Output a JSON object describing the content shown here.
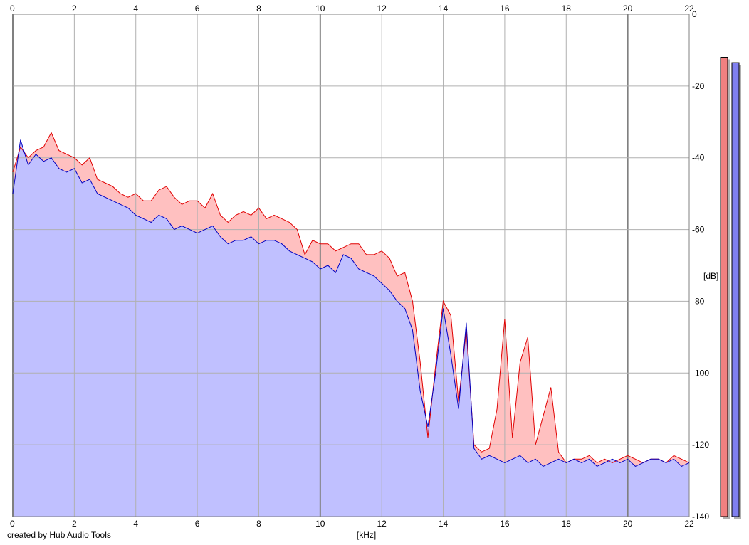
{
  "chart_data": {
    "type": "area",
    "title": "",
    "xlabel": "[kHz]",
    "ylabel": "[dB]",
    "xlim": [
      0,
      22
    ],
    "ylim": [
      -140,
      0
    ],
    "x_ticks": [
      0,
      2,
      4,
      6,
      8,
      10,
      12,
      14,
      16,
      18,
      20,
      22
    ],
    "y_ticks": [
      0,
      -20,
      -40,
      -60,
      -80,
      -100,
      -120,
      -140
    ],
    "grid": true,
    "legend": "none",
    "series": [
      {
        "color": "#e00000",
        "fill": "#ffc0c0",
        "x": [
          0,
          0.25,
          0.5,
          0.75,
          1,
          1.25,
          1.5,
          1.75,
          2,
          2.25,
          2.5,
          2.75,
          3,
          3.25,
          3.5,
          3.75,
          4,
          4.25,
          4.5,
          4.75,
          5,
          5.25,
          5.5,
          5.75,
          6,
          6.25,
          6.5,
          6.75,
          7,
          7.25,
          7.5,
          7.75,
          8,
          8.25,
          8.5,
          8.75,
          9,
          9.25,
          9.5,
          9.75,
          10,
          10.25,
          10.5,
          10.75,
          11,
          11.25,
          11.5,
          11.75,
          12,
          12.25,
          12.5,
          12.75,
          13,
          13.25,
          13.5,
          13.75,
          14,
          14.25,
          14.5,
          14.75,
          15,
          15.25,
          15.5,
          15.75,
          16,
          16.25,
          16.5,
          16.75,
          17,
          17.25,
          17.5,
          17.75,
          18,
          18.25,
          18.5,
          18.75,
          19,
          19.25,
          19.5,
          19.75,
          20,
          20.25,
          20.5,
          20.75,
          21,
          21.25,
          21.5,
          21.75,
          22
        ],
        "values": [
          -44,
          -37,
          -40,
          -38,
          -37,
          -33,
          -38,
          -39,
          -40,
          -42,
          -40,
          -46,
          -47,
          -48,
          -50,
          -51,
          -50,
          -52,
          -52,
          -49,
          -48,
          -51,
          -53,
          -52,
          -52,
          -54,
          -50,
          -56,
          -58,
          -56,
          -55,
          -56,
          -54,
          -57,
          -56,
          -57,
          -58,
          -60,
          -67,
          -63,
          -64,
          -64,
          -66,
          -65,
          -64,
          -64,
          -67,
          -67,
          -66,
          -68,
          -73,
          -72,
          -80,
          -97,
          -118,
          -98,
          -80,
          -84,
          -108,
          -88,
          -120,
          -122,
          -121,
          -110,
          -85,
          -118,
          -97,
          -90,
          -120,
          -112,
          -104,
          -122,
          -125,
          -124,
          -124,
          -123,
          -125,
          -124,
          -125,
          -124,
          -123,
          -124,
          -125,
          -124,
          -124,
          -125,
          -123,
          -124,
          -125
        ]
      },
      {
        "color": "#0000c0",
        "fill": "#c0c0ff",
        "x": [
          0,
          0.25,
          0.5,
          0.75,
          1,
          1.25,
          1.5,
          1.75,
          2,
          2.25,
          2.5,
          2.75,
          3,
          3.25,
          3.5,
          3.75,
          4,
          4.25,
          4.5,
          4.75,
          5,
          5.25,
          5.5,
          5.75,
          6,
          6.25,
          6.5,
          6.75,
          7,
          7.25,
          7.5,
          7.75,
          8,
          8.25,
          8.5,
          8.75,
          9,
          9.25,
          9.5,
          9.75,
          10,
          10.25,
          10.5,
          10.75,
          11,
          11.25,
          11.5,
          11.75,
          12,
          12.25,
          12.5,
          12.75,
          13,
          13.25,
          13.5,
          13.75,
          14,
          14.25,
          14.5,
          14.75,
          15,
          15.25,
          15.5,
          15.75,
          16,
          16.25,
          16.5,
          16.75,
          17,
          17.25,
          17.5,
          17.75,
          18,
          18.25,
          18.5,
          18.75,
          19,
          19.25,
          19.5,
          19.75,
          20,
          20.25,
          20.5,
          20.75,
          21,
          21.25,
          21.5,
          21.75,
          22
        ],
        "values": [
          -50,
          -35,
          -42,
          -39,
          -41,
          -40,
          -43,
          -44,
          -43,
          -47,
          -46,
          -50,
          -51,
          -52,
          -53,
          -54,
          -56,
          -57,
          -58,
          -56,
          -57,
          -60,
          -59,
          -60,
          -61,
          -60,
          -59,
          -62,
          -64,
          -63,
          -63,
          -62,
          -64,
          -63,
          -63,
          -64,
          -66,
          -67,
          -68,
          -69,
          -71,
          -70,
          -72,
          -67,
          -68,
          -71,
          -72,
          -73,
          -75,
          -77,
          -80,
          -82,
          -88,
          -105,
          -115,
          -100,
          -82,
          -95,
          -110,
          -86,
          -121,
          -124,
          -123,
          -124,
          -125,
          -124,
          -123,
          -125,
          -124,
          -126,
          -125,
          -124,
          -125,
          -124,
          -125,
          -124,
          -126,
          -125,
          -124,
          -125,
          -124,
          -126,
          -125,
          -124,
          -124,
          -125,
          -124,
          -126,
          -125
        ]
      }
    ],
    "level_bars": [
      {
        "color": "#f08080",
        "value": -12
      },
      {
        "color": "#8080f0",
        "value": -13.5
      }
    ]
  },
  "footer": {
    "credit": "created by Hub Audio Tools"
  }
}
